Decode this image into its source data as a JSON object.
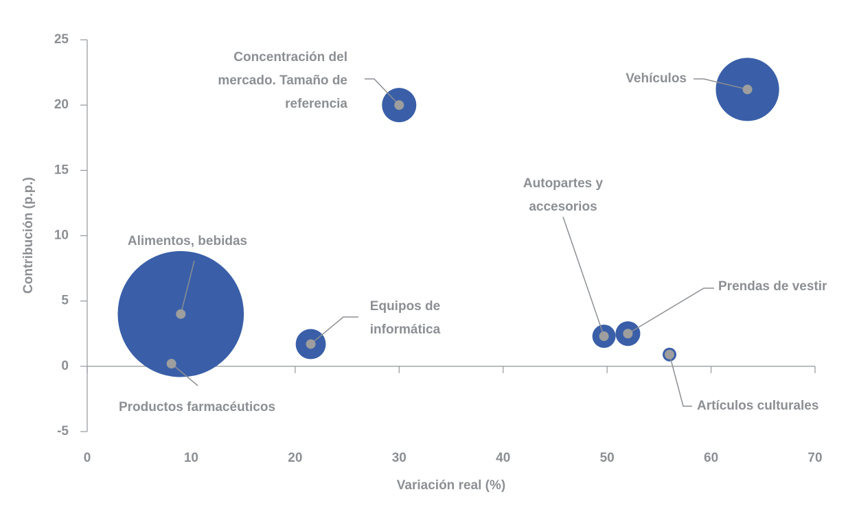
{
  "chart_data": {
    "type": "bubble",
    "xlabel": "Variación real (%)",
    "ylabel": "Contribución (p.p.)",
    "labels": [
      [
        "Alimentos, bebidas"
      ],
      [
        "Productos farmacéuticos"
      ],
      [
        "Equipos de",
        "informática"
      ],
      [
        "Concentración del",
        "mercado. Tamaño de",
        "referencia"
      ],
      [
        "Autopartes y",
        "accesorios"
      ],
      [
        "Prendas de vestir"
      ],
      [
        "Artículos culturales"
      ],
      [
        "Vehículos"
      ]
    ],
    "x": [
      9,
      8.1,
      21.5,
      30,
      49.7,
      52,
      56,
      63.5
    ],
    "y": [
      4,
      0.2,
      1.7,
      20,
      2.3,
      2.5,
      0.9,
      21.2
    ],
    "size": [
      13.5,
      0.23,
      0.77,
      1,
      0.46,
      0.52,
      0.16,
      3.4
    ],
    "color": "#3a5fa8",
    "marker_color": "#9e9e9e",
    "xlim": [
      0,
      70
    ],
    "xticks": [
      0,
      10,
      20,
      30,
      40,
      50,
      60,
      70
    ],
    "ylim": [
      -5,
      25
    ],
    "yticks": [
      -5,
      0,
      5,
      10,
      15,
      20,
      25
    ]
  }
}
